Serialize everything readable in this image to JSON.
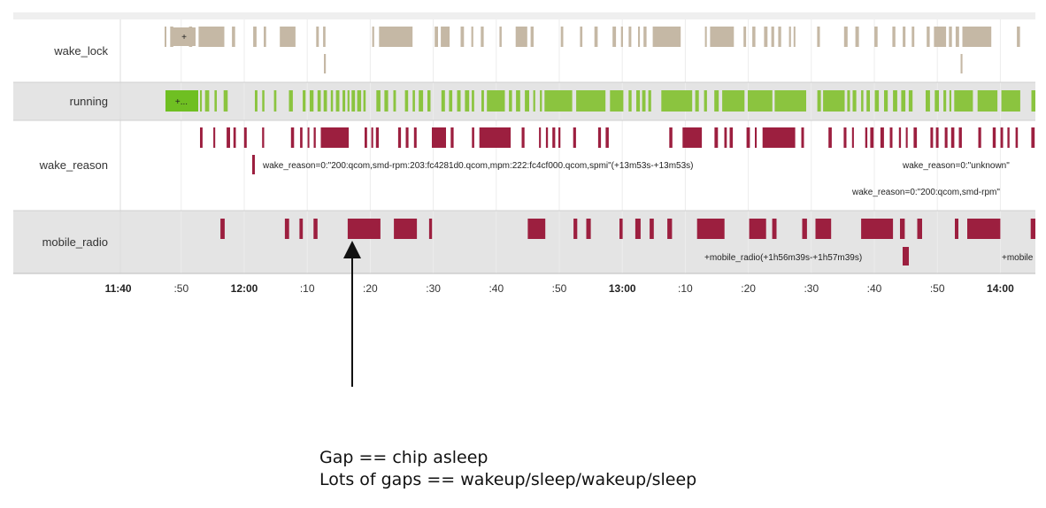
{
  "chart_data": {
    "type": "timeline",
    "title": "",
    "xlabel": "",
    "ylabel": "",
    "x_range": [
      "11:35",
      "14:05"
    ],
    "grid": true,
    "tick_labels": [
      {
        "time": "11:40",
        "label": "11:40",
        "major": true
      },
      {
        "time": "11:50",
        "label": ":50",
        "major": false
      },
      {
        "time": "12:00",
        "label": "12:00",
        "major": true
      },
      {
        "time": "12:10",
        "label": ":10",
        "major": false
      },
      {
        "time": "12:20",
        "label": ":20",
        "major": false
      },
      {
        "time": "12:30",
        "label": ":30",
        "major": false
      },
      {
        "time": "12:40",
        "label": ":40",
        "major": false
      },
      {
        "time": "12:50",
        "label": ":50",
        "major": false
      },
      {
        "time": "13:00",
        "label": "13:00",
        "major": true
      },
      {
        "time": "13:10",
        "label": ":10",
        "major": false
      },
      {
        "time": "13:20",
        "label": ":20",
        "major": false
      },
      {
        "time": "13:30",
        "label": ":30",
        "major": false
      },
      {
        "time": "13:40",
        "label": ":40",
        "major": false
      },
      {
        "time": "13:50",
        "label": ":50",
        "major": false
      },
      {
        "time": "14:00",
        "label": "14:00",
        "major": true
      }
    ],
    "lanes": [
      {
        "name": "wake_lock",
        "color": "#c5b8a5",
        "shaded": false,
        "box_label": "+"
      },
      {
        "name": "running",
        "color": "#8bc43f",
        "shaded": true,
        "box_label": "+..."
      },
      {
        "name": "wake_reason",
        "color": "#9c1f3f",
        "shaded": false,
        "box_label": ""
      },
      {
        "name": "mobile_radio",
        "color": "#9c1f3f",
        "shaded": true,
        "box_label": ""
      }
    ],
    "annotations": [
      {
        "lane": "wake_reason",
        "text": "wake_reason=0:\"200:qcom,smd-rpm:203:fc4281d0.qcom,mpm:222:fc4cf000.qcom,spmi\"(+13m53s-+13m53s)"
      },
      {
        "lane": "wake_reason",
        "text": "wake_reason=0:\"unknown\""
      },
      {
        "lane": "wake_reason",
        "text": "wake_reason=0:\"200:qcom,smd-rpm\""
      },
      {
        "lane": "mobile_radio",
        "text": "+mobile_radio(+1h56m39s-+1h57m39s)"
      },
      {
        "lane": "mobile_radio",
        "text": "+mobile"
      }
    ]
  },
  "caption": {
    "line1": "Gap == chip asleep",
    "line2": "Lots of gaps == wakeup/sleep/wakeup/sleep"
  }
}
